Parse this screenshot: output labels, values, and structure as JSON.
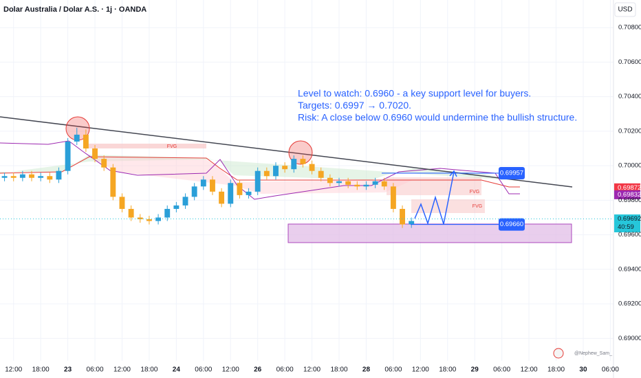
{
  "chart_data": {
    "type": "candlestick",
    "title": "Dolar Australia / Dolar A.S. · 1j · OANDA",
    "currency": "USD",
    "watermark": "@Nephew_Sam_",
    "up_color": "#2a9fd8",
    "down_color": "#f5a623",
    "x": [
      -2,
      0,
      2,
      4,
      6,
      8,
      10,
      12,
      14,
      16,
      18,
      20,
      22,
      24,
      26,
      28,
      30,
      32,
      34,
      36,
      38,
      40,
      42,
      44,
      46,
      48,
      50,
      52,
      54,
      56,
      58,
      60,
      62,
      64,
      66,
      68,
      70,
      72,
      74,
      76,
      78,
      80,
      82,
      84,
      86,
      88
    ],
    "open": [
      0.6993,
      0.6994,
      0.6993,
      0.6995,
      0.6993,
      0.6994,
      0.6992,
      0.6997,
      0.7014,
      0.7018,
      0.701,
      0.7004,
      0.6999,
      0.6982,
      0.6975,
      0.697,
      0.6969,
      0.6968,
      0.697,
      0.6975,
      0.6977,
      0.6982,
      0.6988,
      0.6992,
      0.6985,
      0.6978,
      0.699,
      0.6983,
      0.6985,
      0.6997,
      0.6994,
      0.7,
      0.6998,
      0.7004,
      0.7001,
      0.6997,
      0.6993,
      0.699,
      0.6991,
      0.6989,
      0.6988,
      0.6989,
      0.6991,
      0.6988,
      0.6975,
      0.6966
    ],
    "high": [
      0.6996,
      0.6996,
      0.6997,
      0.6997,
      0.6996,
      0.6996,
      0.6999,
      0.7016,
      0.7022,
      0.7021,
      0.7012,
      0.7006,
      0.7001,
      0.6984,
      0.6977,
      0.6972,
      0.6971,
      0.6972,
      0.6977,
      0.6979,
      0.6984,
      0.699,
      0.6994,
      0.6994,
      0.6987,
      0.6992,
      0.6992,
      0.6987,
      0.6999,
      0.6999,
      0.7002,
      0.7002,
      0.7006,
      0.7006,
      0.7003,
      0.6999,
      0.6995,
      0.6993,
      0.6993,
      0.6991,
      0.6991,
      0.6993,
      0.6993,
      0.699,
      0.6977,
      0.697
    ],
    "low": [
      0.6991,
      0.6991,
      0.6991,
      0.6991,
      0.6991,
      0.699,
      0.699,
      0.6995,
      0.7012,
      0.7008,
      0.7002,
      0.6997,
      0.698,
      0.6973,
      0.6968,
      0.6967,
      0.6966,
      0.6966,
      0.6968,
      0.6973,
      0.6975,
      0.698,
      0.6986,
      0.6983,
      0.6976,
      0.6976,
      0.6981,
      0.6981,
      0.6983,
      0.6992,
      0.6992,
      0.6996,
      0.6996,
      0.6999,
      0.6995,
      0.6991,
      0.6988,
      0.6988,
      0.6987,
      0.6986,
      0.6986,
      0.6987,
      0.6986,
      0.6973,
      0.6964,
      0.6964
    ],
    "close": [
      0.6994,
      0.6993,
      0.6995,
      0.6993,
      0.6994,
      0.6992,
      0.6997,
      0.7014,
      0.7018,
      0.701,
      0.7004,
      0.6999,
      0.6982,
      0.6975,
      0.697,
      0.6969,
      0.6968,
      0.697,
      0.6975,
      0.6977,
      0.6982,
      0.6988,
      0.6992,
      0.6985,
      0.6978,
      0.699,
      0.6983,
      0.6985,
      0.6997,
      0.6994,
      0.7,
      0.6998,
      0.7004,
      0.7001,
      0.6997,
      0.6993,
      0.699,
      0.6991,
      0.6989,
      0.6988,
      0.6989,
      0.6991,
      0.6988,
      0.6975,
      0.6966,
      0.6968
    ],
    "xlim": [
      -3,
      133
    ],
    "ylim": [
      0.6889,
      0.7096
    ],
    "xticks": [
      {
        "value": 0,
        "label": "12:00"
      },
      {
        "value": 6,
        "label": "18:00"
      },
      {
        "value": 12,
        "label": "23"
      },
      {
        "value": 18,
        "label": "06:00"
      },
      {
        "value": 24,
        "label": "12:00"
      },
      {
        "value": 30,
        "label": "18:00"
      },
      {
        "value": 36,
        "label": "24"
      },
      {
        "value": 42,
        "label": "06:00"
      },
      {
        "value": 48,
        "label": "12:00"
      },
      {
        "value": 54,
        "label": "26"
      },
      {
        "value": 60,
        "label": "06:00"
      },
      {
        "value": 66,
        "label": "12:00"
      },
      {
        "value": 72,
        "label": "18:00"
      },
      {
        "value": 78,
        "label": "28"
      },
      {
        "value": 84,
        "label": "06:00"
      },
      {
        "value": 90,
        "label": "12:00"
      },
      {
        "value": 96,
        "label": "18:00"
      },
      {
        "value": 102,
        "label": "29"
      },
      {
        "value": 108,
        "label": "06:00"
      },
      {
        "value": 114,
        "label": "12:00"
      },
      {
        "value": 120,
        "label": "18:00"
      },
      {
        "value": 126,
        "label": "30"
      },
      {
        "value": 132,
        "label": "06:00"
      }
    ],
    "yticks": [
      {
        "value": 0.708,
        "label": "0.70800"
      },
      {
        "value": 0.706,
        "label": "0.70600"
      },
      {
        "value": 0.704,
        "label": "0.70400"
      },
      {
        "value": 0.702,
        "label": "0.70200"
      },
      {
        "value": 0.7,
        "label": "0.70000"
      },
      {
        "value": 0.698,
        "label": "0.69800"
      },
      {
        "value": 0.696,
        "label": "0.69600"
      },
      {
        "value": 0.694,
        "label": "0.69400"
      },
      {
        "value": 0.692,
        "label": "0.69200"
      },
      {
        "value": 0.69,
        "label": "0.69000"
      }
    ],
    "price_labels": [
      {
        "value": 0.69872,
        "label": "0.69872",
        "color": "#f23645"
      },
      {
        "value": 0.69832,
        "label": "0.69832",
        "color": "#9c27b0"
      },
      {
        "value": 0.69692,
        "label": "0.69692",
        "color": "#26c6da",
        "countdown": "40:59"
      }
    ],
    "annotations": [
      {
        "value": 0.69957,
        "label": "0.69957"
      },
      {
        "value": 0.6966,
        "label": "0.69660"
      }
    ],
    "note_lines": [
      "Level to watch: 0.6960 - a key support level for buyers.",
      "Targets: 0.6997 → 0.7020.",
      "Risk: A close below 0.6960 would undermine the bullish structure."
    ],
    "fvg_labels": [
      "FVG",
      "FVG",
      "FVG"
    ]
  }
}
